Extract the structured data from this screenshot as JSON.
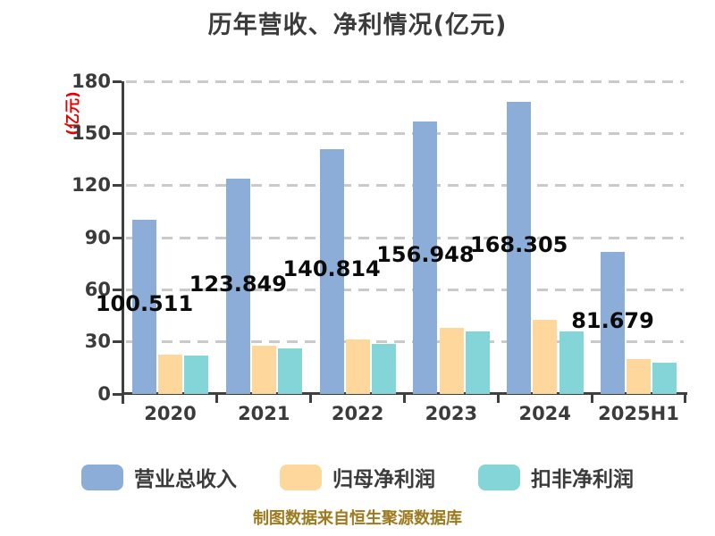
{
  "chart_data": {
    "type": "bar",
    "title": "历年营收、净利情况(亿元)",
    "ylabel": "(亿元)",
    "categories": [
      "2020",
      "2021",
      "2022",
      "2023",
      "2024",
      "2025H1"
    ],
    "series": [
      {
        "name": "营业总收入",
        "color": "#8cadd8",
        "values": [
          100.511,
          123.849,
          140.814,
          156.948,
          168.305,
          81.679
        ],
        "labels_shown": true
      },
      {
        "name": "归母净利润",
        "color": "#fdd79c",
        "values": [
          22.5,
          28,
          31.5,
          38,
          42.5,
          20
        ],
        "labels_shown": false
      },
      {
        "name": "扣非净利润",
        "color": "#84d5d8",
        "values": [
          22,
          26,
          29,
          36,
          36,
          18
        ],
        "labels_shown": false
      }
    ],
    "value_labels": [
      "100.511",
      "123.849",
      "140.814",
      "156.948",
      "168.305",
      "81.679"
    ],
    "ylim": [
      0,
      180
    ],
    "ytick_step": 30,
    "yticks": [
      0,
      30,
      60,
      90,
      120,
      150,
      180
    ],
    "grid": "dashed-horizontal",
    "legend_position": "bottom",
    "colors": {
      "axis": "#3f3f3f",
      "grid": "#cacaca",
      "tick_text": "#3b3b3b",
      "value_label": "#0b0b0b",
      "ylabel_text": "#e60000",
      "title_text": "#3b3b3b"
    }
  },
  "footer": {
    "source_note": "制图数据来自恒生聚源数据库",
    "color": "#9e7a1e"
  }
}
